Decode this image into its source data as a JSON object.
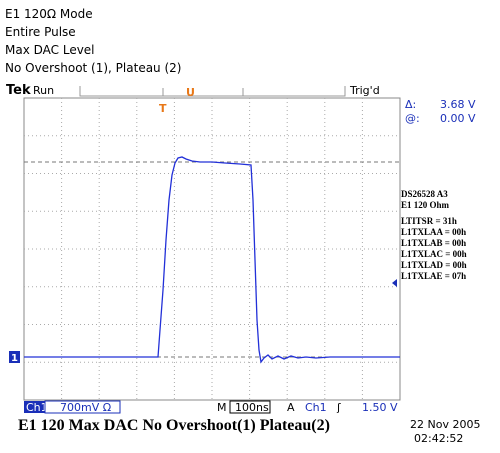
{
  "header": {
    "lines": [
      "E1 120Ω Mode",
      "Entire Pulse",
      "Max DAC Level",
      "No Overshoot (1), Plateau (2)"
    ]
  },
  "scope": {
    "status": {
      "brand": "Tek",
      "state": "Run",
      "trigger": "Trig'd"
    },
    "cursor_readout": {
      "delta_label": "Δ:",
      "delta_value": "3.68 V",
      "at_label": "@:",
      "at_value": "0.00 V"
    },
    "channel_marker": "1",
    "side_notes": [
      "DS26528 A3",
      "E1 120 Ohm",
      "LTITSR = 31h",
      "L1TXLAA = 00h",
      "L1TXLAB = 00h",
      "L1TXLAC = 00h",
      "L1TXLAD = 00h",
      "L1TXLAE = 07h"
    ],
    "bottom_bar": {
      "channel": "Ch1",
      "scale": "700mV Ω",
      "time_prefix": "M",
      "timebase": "100ns",
      "trigger_mode": "A",
      "trigger_source": "Ch1",
      "slope": "ʃ",
      "trigger_level": "1.50 V"
    },
    "caption": "E1 120 Max DAC No Overshoot(1) Plateau(2)",
    "date": "22 Nov 2005",
    "time": "02:42:52"
  }
}
